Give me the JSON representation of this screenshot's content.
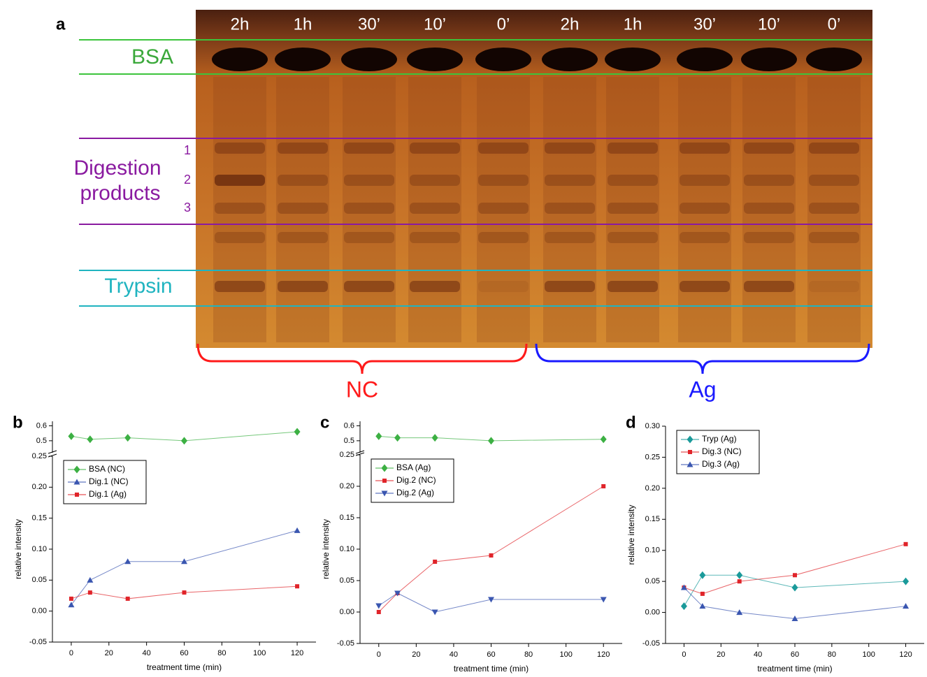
{
  "panel_labels": [
    "a",
    "b",
    "c",
    "d"
  ],
  "gel": {
    "lanes": [
      "2h",
      "1h",
      "30’",
      "10’",
      "0’",
      "2h",
      "1h",
      "30’",
      "10’",
      "0’"
    ],
    "bsa": "BSA",
    "digestion": [
      "Digestion",
      "products"
    ],
    "numbers": [
      "1",
      "2",
      "3"
    ],
    "trypsin": "Trypsin",
    "groups": [
      "NC",
      "Ag"
    ]
  },
  "chart_data": [
    {
      "type": "line",
      "x_label": "treatment time (min)",
      "y_label": "relative intensity",
      "x": [
        0,
        10,
        30,
        60,
        120
      ],
      "xlim": [
        -10,
        130
      ],
      "xticks": [
        0,
        20,
        40,
        60,
        80,
        100,
        120
      ],
      "ylim": [
        -0.05,
        0.25
      ],
      "yticks": [
        -0.05,
        {
          "value": 0,
          "label": "0.00"
        },
        0.05,
        {
          "value": 0.1,
          "label": "0.10"
        },
        0.15,
        {
          "value": 0.2,
          "label": "0.20"
        },
        0.25
      ],
      "ylim_upper": [
        0.42,
        0.63
      ],
      "yticks_upper": [
        0.5,
        0.6
      ],
      "legend": "upper left",
      "series": [
        {
          "name": "BSA (NC)",
          "color": "#3cb043",
          "marker": "diamond",
          "axis": "upper",
          "values": [
            0.53,
            0.51,
            0.52,
            0.5,
            0.56
          ]
        },
        {
          "name": "Dig.1 (NC)",
          "color": "#3a56b0",
          "marker": "triangle-up",
          "values": [
            0.01,
            0.05,
            0.08,
            0.08,
            0.13
          ]
        },
        {
          "name": "Dig.1 (Ag)",
          "color": "#e0242a",
          "marker": "square",
          "values": [
            0.02,
            0.03,
            0.02,
            0.03,
            0.04
          ]
        }
      ]
    },
    {
      "type": "line",
      "x_label": "treatment time (min)",
      "y_label": "relative intensity",
      "x": [
        0,
        10,
        30,
        60,
        120
      ],
      "xlim": [
        -10,
        130
      ],
      "xticks": [
        0,
        20,
        40,
        60,
        80,
        100,
        120
      ],
      "ylim": [
        -0.05,
        0.25
      ],
      "yticks": [
        -0.05,
        {
          "value": 0,
          "label": "0.00"
        },
        0.05,
        {
          "value": 0.1,
          "label": "0.10"
        },
        0.15,
        {
          "value": 0.2,
          "label": "0.20"
        },
        0.25
      ],
      "ylim_upper": [
        0.42,
        0.63
      ],
      "yticks_upper": [
        0.5,
        0.6
      ],
      "legend": "upper left",
      "series": [
        {
          "name": "BSA (Ag)",
          "color": "#3cb043",
          "marker": "diamond",
          "axis": "upper",
          "values": [
            0.53,
            0.52,
            0.52,
            0.5,
            0.51
          ]
        },
        {
          "name": "Dig.2 (NC)",
          "color": "#e0242a",
          "marker": "square",
          "values": [
            0.0,
            0.03,
            0.08,
            0.09,
            0.2
          ]
        },
        {
          "name": "Dig.2 (Ag)",
          "color": "#3a56b0",
          "marker": "triangle-down",
          "values": [
            0.01,
            0.03,
            0.0,
            0.02,
            0.02
          ]
        }
      ]
    },
    {
      "type": "line",
      "x_label": "treatment time (min)",
      "y_label": "relative intensity",
      "x": [
        0,
        10,
        30,
        60,
        120
      ],
      "xlim": [
        -10,
        130
      ],
      "xticks": [
        0,
        20,
        40,
        60,
        80,
        100,
        120
      ],
      "ylim": [
        -0.05,
        0.3
      ],
      "yticks": [
        -0.05,
        {
          "value": 0,
          "label": "0.00"
        },
        0.05,
        {
          "value": 0.1,
          "label": "0.10"
        },
        0.15,
        {
          "value": 0.2,
          "label": "0.20"
        },
        0.25,
        {
          "value": 0.3,
          "label": "0.30"
        }
      ],
      "legend": "upper left",
      "series": [
        {
          "name": "Tryp (Ag)",
          "color": "#1a9a9a",
          "marker": "diamond",
          "values": [
            0.01,
            0.06,
            0.06,
            0.04,
            0.05
          ]
        },
        {
          "name": "Dig.3 (NC)",
          "color": "#e0242a",
          "marker": "square",
          "values": [
            0.04,
            0.03,
            0.05,
            0.06,
            0.11
          ]
        },
        {
          "name": "Dig.3 (Ag)",
          "color": "#3a56b0",
          "marker": "triangle-up",
          "values": [
            0.04,
            0.01,
            0.0,
            -0.01,
            0.01
          ]
        }
      ]
    }
  ]
}
